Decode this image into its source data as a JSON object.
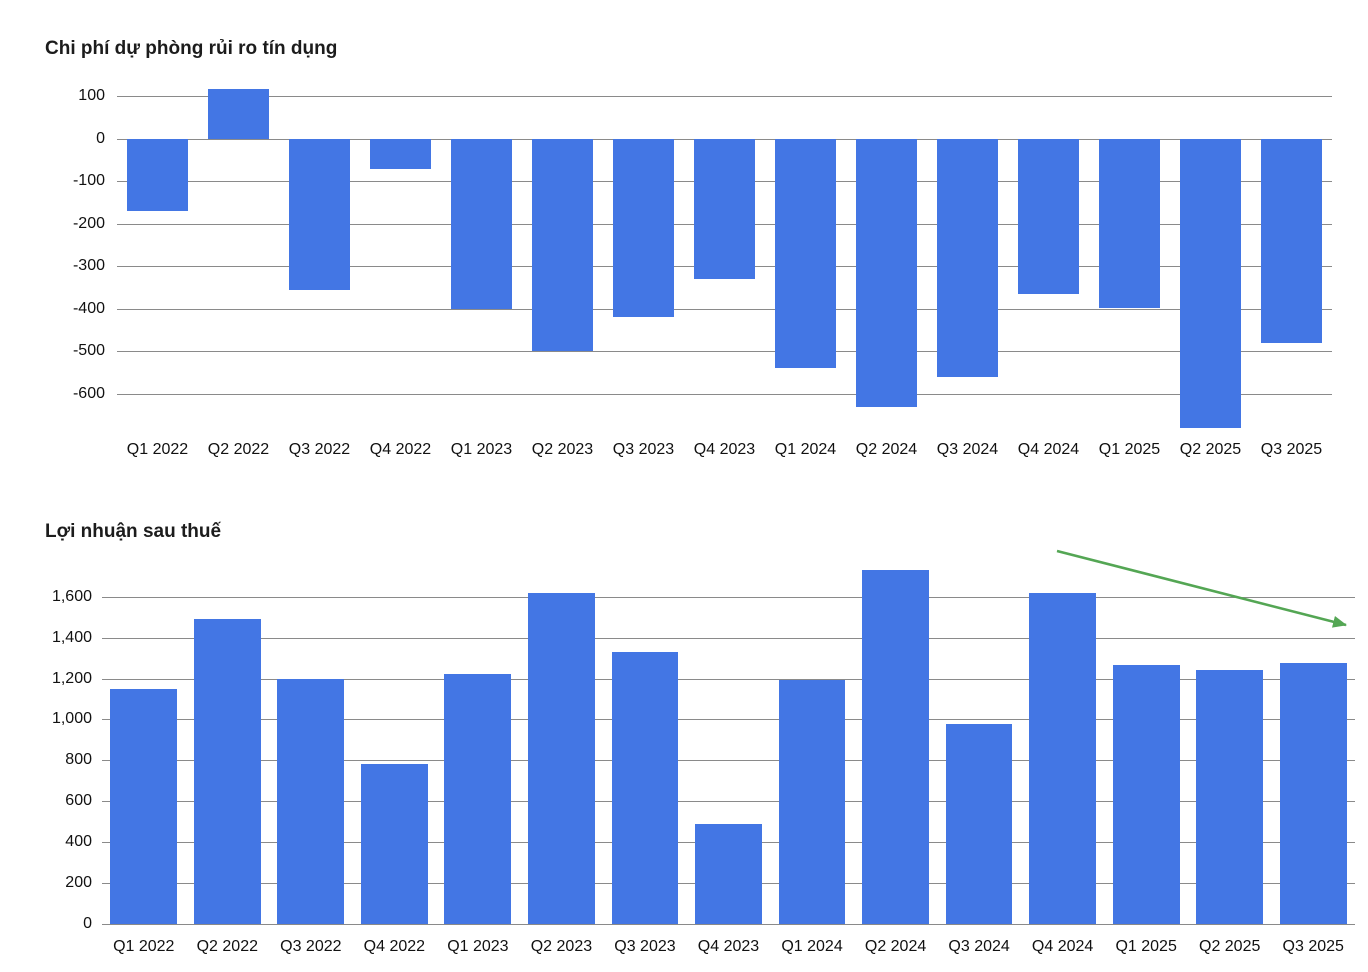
{
  "page": {
    "background": "#ffffff"
  },
  "chart_data": [
    {
      "type": "bar",
      "title": "Chi phí dự phòng rủi ro tín dụng",
      "categories": [
        "Q1 2022",
        "Q2 2022",
        "Q3 2022",
        "Q4 2022",
        "Q1 2023",
        "Q2 2023",
        "Q3 2023",
        "Q4 2023",
        "Q1 2024",
        "Q2 2024",
        "Q3 2024",
        "Q4 2024",
        "Q1 2025",
        "Q2 2025",
        "Q3 2025"
      ],
      "values": [
        -170,
        117,
        -355,
        -70,
        -400,
        -500,
        -420,
        -330,
        -540,
        -630,
        -560,
        -365,
        -398,
        -680,
        -480
      ],
      "xlabel": "",
      "ylabel": "",
      "ylim": [
        -685,
        127
      ],
      "yticks": [
        {
          "value": 100,
          "label": "100"
        },
        {
          "value": 0,
          "label": "0"
        },
        {
          "value": -100,
          "label": "-100"
        },
        {
          "value": -200,
          "label": "-200"
        },
        {
          "value": -300,
          "label": "-300"
        },
        {
          "value": -400,
          "label": "-400"
        },
        {
          "value": -500,
          "label": "-500"
        },
        {
          "value": -600,
          "label": "-600"
        }
      ],
      "grid": true,
      "legend": "none",
      "bar_color": "#4376E4",
      "grid_color": "#8a8a8a",
      "bar_width_frac": 0.765
    },
    {
      "type": "bar",
      "title": "Lợi nhuận sau thuế",
      "categories": [
        "Q1 2022",
        "Q2 2022",
        "Q3 2022",
        "Q4 2022",
        "Q1 2023",
        "Q2 2023",
        "Q3 2023",
        "Q4 2023",
        "Q1 2024",
        "Q2 2024",
        "Q3 2024",
        "Q4 2024",
        "Q1 2025",
        "Q2 2025",
        "Q3 2025"
      ],
      "values": [
        1150,
        1490,
        1200,
        780,
        1220,
        1620,
        1330,
        490,
        1195,
        1730,
        980,
        1620,
        1265,
        1240,
        1275
      ],
      "xlabel": "",
      "ylabel": "",
      "ylim": [
        0,
        1760
      ],
      "yticks": [
        {
          "value": 1600,
          "label": "1,600"
        },
        {
          "value": 1400,
          "label": "1,400"
        },
        {
          "value": 1200,
          "label": "1,200"
        },
        {
          "value": 1000,
          "label": "1,000"
        },
        {
          "value": 800,
          "label": "800"
        },
        {
          "value": 600,
          "label": "600"
        },
        {
          "value": 400,
          "label": "400"
        },
        {
          "value": 200,
          "label": "200"
        },
        {
          "value": 0,
          "label": "0"
        }
      ],
      "grid": true,
      "legend": "none",
      "bar_color": "#4376E4",
      "grid_color": "#8a8a8a",
      "bar_width_frac": 0.8
    }
  ],
  "annotation": {
    "name": "downtrend-arrow",
    "color": "#54A654"
  }
}
